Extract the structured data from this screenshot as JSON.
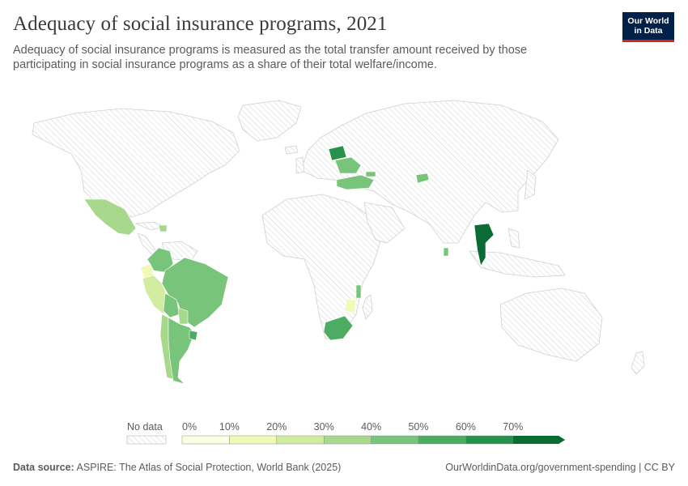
{
  "header": {
    "title": "Adequacy of social insurance programs, 2021",
    "subtitle": "Adequacy of social insurance programs is measured as the total transfer amount received by those participating in social insurance programs as a share of their total welfare/income."
  },
  "logo": {
    "line1": "Our World",
    "line2": "in Data"
  },
  "legend": {
    "no_data_label": "No data",
    "ticks": [
      "0%",
      "10%",
      "20%",
      "30%",
      "40%",
      "50%",
      "60%",
      "70%"
    ],
    "colors": [
      "#fdfde1",
      "#f0f9b5",
      "#d2ec9f",
      "#a8d88c",
      "#78c47b",
      "#4bac62",
      "#27904a",
      "#0b6b35"
    ]
  },
  "map_data": {
    "unit": "%",
    "highlighted_countries": [
      {
        "name": "Mexico",
        "bin": "40-50%"
      },
      {
        "name": "Honduras",
        "bin": "40-50%"
      },
      {
        "name": "Colombia",
        "bin": "40-50%"
      },
      {
        "name": "Ecuador",
        "bin": "10-20%"
      },
      {
        "name": "Peru",
        "bin": "20-30%"
      },
      {
        "name": "Brazil",
        "bin": "40-50%"
      },
      {
        "name": "Bolivia",
        "bin": "40-50%"
      },
      {
        "name": "Paraguay",
        "bin": "30-40%"
      },
      {
        "name": "Chile",
        "bin": "30-40%"
      },
      {
        "name": "Argentina",
        "bin": "40-50%"
      },
      {
        "name": "Uruguay",
        "bin": "50-60%"
      },
      {
        "name": "Belarus",
        "bin": "60-70%"
      },
      {
        "name": "Ukraine",
        "bin": "40-50%"
      },
      {
        "name": "Georgia",
        "bin": "40-50%"
      },
      {
        "name": "Turkey",
        "bin": "40-50%"
      },
      {
        "name": "Kyrgyzstan",
        "bin": "40-50%"
      },
      {
        "name": "Thailand",
        "bin": "70%+"
      },
      {
        "name": "Sri Lanka",
        "bin": "40-50%"
      },
      {
        "name": "Malawi",
        "bin": "40-50%"
      },
      {
        "name": "Mozambique",
        "bin": "10-20%"
      },
      {
        "name": "South Africa",
        "bin": "50-60%"
      }
    ]
  },
  "footer": {
    "source_label": "Data source:",
    "source_text": "ASPIRE: The Atlas of Social Protection, World Bank (2025)",
    "url_text": "OurWorldinData.org/government-spending | CC BY"
  }
}
